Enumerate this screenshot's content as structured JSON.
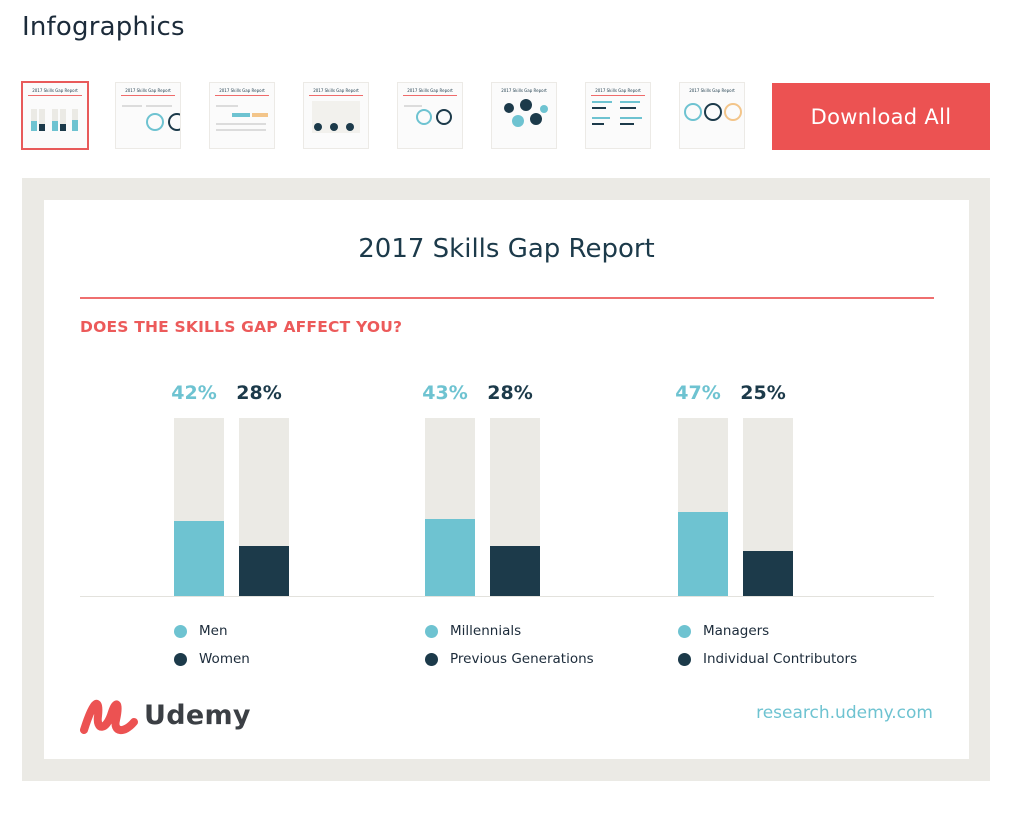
{
  "section": {
    "title": "Infographics"
  },
  "thumbnails": [
    {
      "title": "2017 Skills Gap Report",
      "selected": true
    },
    {
      "title": "2017 Skills Gap Report",
      "selected": false
    },
    {
      "title": "2017 Skills Gap Report",
      "selected": false
    },
    {
      "title": "2017 Skills Gap Report",
      "selected": false
    },
    {
      "title": "2017 Skills Gap Report",
      "selected": false
    },
    {
      "title": "2017 Skills Gap Report",
      "selected": false
    },
    {
      "title": "2017 Skills Gap Report",
      "selected": false
    },
    {
      "title": "2017 Skills Gap Report",
      "selected": false
    }
  ],
  "download": {
    "label": "Download All",
    "color": "#ec5252"
  },
  "report": {
    "title": "2017 Skills Gap Report",
    "question": "DOES THE SKILLS GAP AFFECT YOU?",
    "brand": "Udemy",
    "url": "research.udemy.com"
  },
  "colors": {
    "teal": "#6ec3d1",
    "navy": "#1c3a4a",
    "accent": "#ec5a5a",
    "track": "#ebeae5"
  },
  "chart_data": {
    "type": "bar",
    "title": "",
    "groups": [
      {
        "series": [
          {
            "name": "Men",
            "value": 42,
            "label": "42%"
          },
          {
            "name": "Women",
            "value": 28,
            "label": "28%"
          }
        ]
      },
      {
        "series": [
          {
            "name": "Millennials",
            "value": 43,
            "label": "43%"
          },
          {
            "name": "Previous Generations",
            "value": 28,
            "label": "28%"
          }
        ]
      },
      {
        "series": [
          {
            "name": "Managers",
            "value": 47,
            "label": "47%"
          },
          {
            "name": "Individual Contributors",
            "value": 25,
            "label": "25%"
          }
        ]
      }
    ],
    "ylim": [
      0,
      100
    ],
    "grid": false,
    "legend": "bottom"
  }
}
